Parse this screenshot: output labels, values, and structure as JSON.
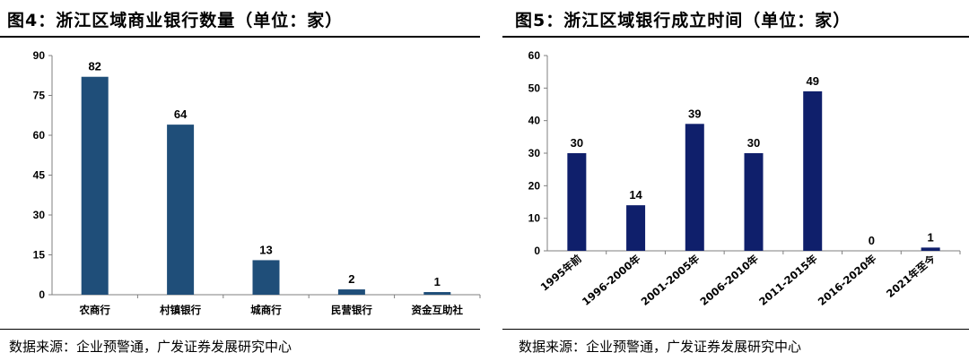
{
  "figures": [
    {
      "title": "图4：浙江区域商业银行数量（单位：家）",
      "source": "数据来源：企业预警通，广发证券发展研究中心"
    },
    {
      "title": "图5：浙江区域银行成立时间（单位：家）",
      "source": "数据来源：企业预警通，广发证券发展研究中心"
    }
  ],
  "chart_data": [
    {
      "type": "bar",
      "title": "图4：浙江区域商业银行数量（单位：家）",
      "categories": [
        "农商行",
        "村镇银行",
        "城商行",
        "民营银行",
        "资金互助社"
      ],
      "values": [
        82,
        64,
        13,
        2,
        1
      ],
      "data_labels": [
        "82",
        "64",
        "13",
        "2",
        "1"
      ],
      "ylim": [
        0,
        90
      ],
      "yticks": [
        0,
        15,
        30,
        45,
        60,
        75,
        90
      ],
      "xlabel": "",
      "ylabel": "",
      "bar_color": "#1f4e79",
      "grid": false,
      "legend": "none"
    },
    {
      "type": "bar",
      "title": "图5：浙江区域银行成立时间（单位：家）",
      "categories": [
        "1995年前",
        "1996-2000年",
        "2001-2005年",
        "2006-2010年",
        "2011-2015年",
        "2016-2020年",
        "2021年至今"
      ],
      "values": [
        30,
        14,
        39,
        30,
        49,
        0,
        1
      ],
      "data_labels": [
        "30",
        "14",
        "39",
        "30",
        "49",
        "0",
        "1"
      ],
      "ylim": [
        0,
        60
      ],
      "yticks": [
        0,
        10,
        20,
        30,
        40,
        50,
        60
      ],
      "xlabel": "",
      "ylabel": "",
      "bar_color": "#0f1f6b",
      "grid": false,
      "legend": "none",
      "category_label_rotation": "diagonal"
    }
  ]
}
